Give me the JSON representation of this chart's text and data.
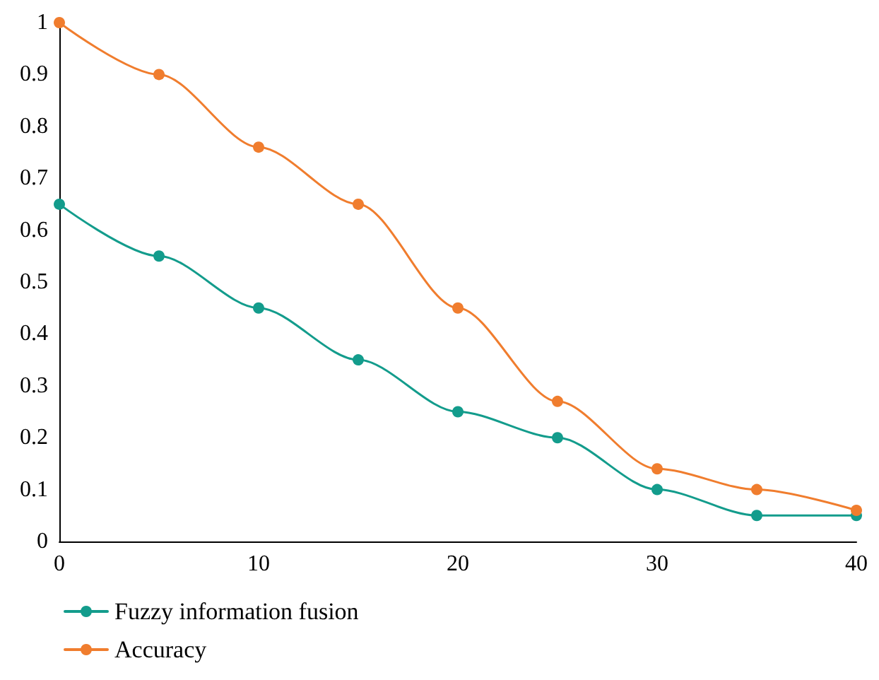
{
  "chart_data": {
    "type": "line",
    "x": [
      0,
      5,
      10,
      15,
      20,
      25,
      30,
      35,
      40
    ],
    "series": [
      {
        "name": "Fuzzy information fusion",
        "color": "#139c8c",
        "values": [
          0.65,
          0.55,
          0.45,
          0.35,
          0.25,
          0.2,
          0.1,
          0.05,
          0.05
        ]
      },
      {
        "name": "Accuracy",
        "color": "#f07d2e",
        "values": [
          1,
          0.9,
          0.76,
          0.65,
          0.45,
          0.27,
          0.14,
          0.1,
          0.06
        ]
      }
    ],
    "xlim": [
      0,
      40
    ],
    "xticks": [
      0,
      10,
      20,
      30,
      40
    ],
    "ylim": [
      0,
      1
    ],
    "yticks": [
      0,
      0.1,
      0.2,
      0.3,
      0.4,
      0.5,
      0.6,
      0.7,
      0.8,
      0.9,
      1
    ],
    "grid": false,
    "legend": "bottom left",
    "marker": "circle",
    "line_style": "solid"
  }
}
